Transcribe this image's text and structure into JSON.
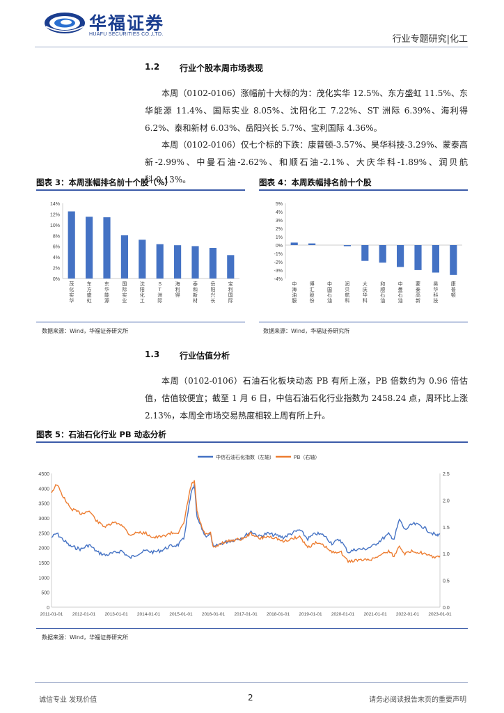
{
  "header": {
    "logo_cn": "华福证券",
    "logo_en": "HUAFU SECURITIES CO.,LTD.",
    "right": "行业专题研究|化工"
  },
  "sec12": {
    "num": "1.2",
    "title": "行业个股本周市场表现"
  },
  "para1": "本周（0102-0106）涨幅前十大标的为：茂化实华 12.5%、东方盛虹 11.5%、东华能源 11.4%、国际实业 8.05%、沈阳化工 7.22%、ST 洲际 6.39%、海利得 6.2%、泰和新材 6.03%、岳阳兴长 5.7%、宝利国际 4.36%。",
  "para2": "本周（0102-0106）仅七个标的下跌：康普顿-3.57%、昊华科技-3.29%、蒙泰高新-2.99%、中曼石油-2.62%、和顺石油-2.1%、大庆华科-1.89%、润贝航科-0.13%。",
  "fig3": {
    "title": "图表 3：本周涨幅排名前十个股（%）",
    "source": "数据来源：Wind，华福证券研究所"
  },
  "fig4": {
    "title": "图表 4：本周跌幅排名前十个股",
    "source": "数据来源：Wind，华福证券研究所"
  },
  "sec13": {
    "num": "1.3",
    "title": "行业估值分析"
  },
  "para3": "本周（0102-0106）石油石化板块动态 PB 有所上涨，PB 倍数约为 0.96 倍估值，估值较便宜；截至 1 月 6 日，中信石油石化行业指数为 2458.24 点，周环比上涨 2.13%，本周全市场交易热度相较上周有所上升。",
  "fig5": {
    "title": "图表 5：石油石化行业 PB 动态分析",
    "source": "数据来源：Wind，华福证券研究所"
  },
  "footer": {
    "left": "诚信专业  发现价值",
    "page": "2",
    "right": "请务必阅读报告末页的重要声明"
  },
  "colors": {
    "bar": "#4472c4",
    "blue_line": "#4472c4",
    "orange_line": "#ed7d31",
    "accent": "#1a3d8f"
  },
  "chart_data": [
    {
      "type": "bar",
      "categories": [
        "茂化实华",
        "东方盛虹",
        "东华能源",
        "国际实业",
        "沈阳化工",
        "ST洲际",
        "海利得",
        "泰和新材",
        "岳阳兴长",
        "宝利国际"
      ],
      "values": [
        12.5,
        11.5,
        11.4,
        8.05,
        7.22,
        6.39,
        6.2,
        6.03,
        5.7,
        4.36
      ],
      "ylim": [
        0,
        14
      ],
      "yticks": [
        "0%",
        "2%",
        "4%",
        "6%",
        "8%",
        "10%",
        "12%",
        "14%"
      ],
      "grid": false
    },
    {
      "type": "bar",
      "categories": [
        "中海油服",
        "博汇股份",
        "中国石油",
        "润贝航科",
        "大庆华科",
        "和顺石油",
        "中曼石油",
        "蒙泰高新",
        "昊华科技",
        "康普顿"
      ],
      "values": [
        0.3,
        0.2,
        0.0,
        -0.13,
        -1.89,
        -2.1,
        -2.62,
        -2.99,
        -3.29,
        -3.57
      ],
      "ylim": [
        -4,
        5
      ],
      "yticks": [
        "-4%",
        "-3%",
        "-2%",
        "-1%",
        "0%",
        "1%",
        "2%",
        "3%",
        "4%",
        "5%"
      ],
      "grid": false
    },
    {
      "type": "line",
      "legend": [
        "中信石油石化指数（左轴）",
        "PB（右轴）"
      ],
      "legend_position": "top-center",
      "x": [
        "2011-01-01",
        "2012-01-01",
        "2013-01-01",
        "2014-01-01",
        "2015-01-01",
        "2016-01-01",
        "2017-01-01",
        "2018-01-01",
        "2019-01-01",
        "2020-01-01",
        "2021-01-01",
        "2022-01-01",
        "2023-01-01"
      ],
      "ylim_left": [
        0,
        4500
      ],
      "yticks_left": [
        "0",
        "500",
        "1000",
        "1500",
        "2000",
        "2500",
        "3000",
        "3500",
        "4000",
        "4500"
      ],
      "ylim_right": [
        0,
        2.5
      ],
      "yticks_right": [
        "0.0",
        "0.5",
        "1.0",
        "1.5",
        "2.0",
        "2.5"
      ],
      "grid": false,
      "series": [
        {
          "name": "中信石油石化指数（左轴）",
          "points": [
            [
              "2011-01-01",
              2350
            ],
            [
              "2011-03-01",
              2480
            ],
            [
              "2011-05-01",
              2300
            ],
            [
              "2011-08-01",
              2050
            ],
            [
              "2011-12-01",
              1950
            ],
            [
              "2012-03-01",
              2100
            ],
            [
              "2012-06-01",
              1850
            ],
            [
              "2012-09-01",
              1750
            ],
            [
              "2012-12-01",
              1820
            ],
            [
              "2013-03-01",
              1900
            ],
            [
              "2013-06-01",
              1650
            ],
            [
              "2013-09-01",
              1800
            ],
            [
              "2013-12-01",
              1900
            ],
            [
              "2014-03-01",
              1850
            ],
            [
              "2014-06-01",
              1920
            ],
            [
              "2014-09-01",
              2050
            ],
            [
              "2014-12-01",
              2100
            ],
            [
              "2015-02-01",
              2300
            ],
            [
              "2015-04-01",
              3400
            ],
            [
              "2015-05-01",
              3900
            ],
            [
              "2015-06-01",
              4100
            ],
            [
              "2015-07-01",
              3000
            ],
            [
              "2015-08-01",
              2800
            ],
            [
              "2015-10-01",
              2400
            ],
            [
              "2015-12-01",
              2450
            ],
            [
              "2016-01-01",
              2000
            ],
            [
              "2016-04-01",
              2150
            ],
            [
              "2016-08-01",
              2250
            ],
            [
              "2016-12-01",
              2350
            ],
            [
              "2017-03-01",
              2550
            ],
            [
              "2017-06-01",
              2380
            ],
            [
              "2017-09-01",
              2480
            ],
            [
              "2017-12-01",
              2420
            ],
            [
              "2018-03-01",
              2350
            ],
            [
              "2018-06-01",
              2480
            ],
            [
              "2018-09-01",
              2600
            ],
            [
              "2018-12-01",
              2300
            ],
            [
              "2019-03-01",
              2480
            ],
            [
              "2019-06-01",
              2420
            ],
            [
              "2019-09-01",
              2150
            ],
            [
              "2019-12-01",
              2280
            ],
            [
              "2020-03-01",
              1850
            ],
            [
              "2020-06-01",
              1950
            ],
            [
              "2020-09-01",
              1950
            ],
            [
              "2020-12-01",
              2050
            ],
            [
              "2021-03-01",
              2250
            ],
            [
              "2021-06-01",
              2450
            ],
            [
              "2021-08-01",
              2300
            ],
            [
              "2021-10-01",
              2950
            ],
            [
              "2021-12-01",
              2600
            ],
            [
              "2022-03-01",
              2800
            ],
            [
              "2022-06-01",
              2750
            ],
            [
              "2022-09-01",
              2550
            ],
            [
              "2022-12-01",
              2400
            ],
            [
              "2023-01-01",
              2458
            ]
          ]
        },
        {
          "name": "PB（右轴）",
          "points": [
            [
              "2011-01-01",
              2.15
            ],
            [
              "2011-03-01",
              2.3
            ],
            [
              "2011-05-01",
              2.1
            ],
            [
              "2011-08-01",
              1.85
            ],
            [
              "2011-12-01",
              1.75
            ],
            [
              "2012-03-01",
              1.8
            ],
            [
              "2012-06-01",
              1.6
            ],
            [
              "2012-09-01",
              1.5
            ],
            [
              "2012-12-01",
              1.58
            ],
            [
              "2013-03-01",
              1.55
            ],
            [
              "2013-06-01",
              1.35
            ],
            [
              "2013-09-01",
              1.4
            ],
            [
              "2013-12-01",
              1.38
            ],
            [
              "2014-03-01",
              1.3
            ],
            [
              "2014-06-01",
              1.32
            ],
            [
              "2014-09-01",
              1.38
            ],
            [
              "2014-12-01",
              1.4
            ],
            [
              "2015-02-01",
              1.55
            ],
            [
              "2015-04-01",
              2.1
            ],
            [
              "2015-05-01",
              2.3
            ],
            [
              "2015-06-01",
              2.35
            ],
            [
              "2015-07-01",
              1.8
            ],
            [
              "2015-08-01",
              1.6
            ],
            [
              "2015-10-01",
              1.35
            ],
            [
              "2015-12-01",
              1.38
            ],
            [
              "2016-01-01",
              1.1
            ],
            [
              "2016-04-01",
              1.2
            ],
            [
              "2016-08-01",
              1.25
            ],
            [
              "2016-12-01",
              1.28
            ],
            [
              "2017-03-01",
              1.38
            ],
            [
              "2017-06-01",
              1.28
            ],
            [
              "2017-09-01",
              1.32
            ],
            [
              "2017-12-01",
              1.3
            ],
            [
              "2018-03-01",
              1.22
            ],
            [
              "2018-06-01",
              1.28
            ],
            [
              "2018-09-01",
              1.32
            ],
            [
              "2018-12-01",
              1.12
            ],
            [
              "2019-03-01",
              1.2
            ],
            [
              "2019-06-01",
              1.15
            ],
            [
              "2019-09-01",
              1.02
            ],
            [
              "2019-12-01",
              1.05
            ],
            [
              "2020-03-01",
              0.85
            ],
            [
              "2020-06-01",
              0.88
            ],
            [
              "2020-09-01",
              0.88
            ],
            [
              "2020-12-01",
              0.9
            ],
            [
              "2021-03-01",
              0.98
            ],
            [
              "2021-06-01",
              1.05
            ],
            [
              "2021-08-01",
              0.95
            ],
            [
              "2021-10-01",
              1.15
            ],
            [
              "2021-12-01",
              1.0
            ],
            [
              "2022-03-01",
              1.05
            ],
            [
              "2022-06-01",
              1.02
            ],
            [
              "2022-09-01",
              0.96
            ],
            [
              "2022-12-01",
              0.93
            ],
            [
              "2023-01-01",
              0.96
            ]
          ]
        }
      ]
    }
  ]
}
